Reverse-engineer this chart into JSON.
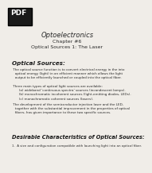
{
  "bg_color": "#f0ede8",
  "pdf_badge_color": "#1a1a1a",
  "pdf_badge_text": "PDF",
  "pdf_badge_text_color": "#ffffff",
  "title": "Optoelectronics",
  "subtitle1": "Chapter #6",
  "subtitle2": "Optical Sources 1: The Laser",
  "section1": "Optical Sources:",
  "bullet1_marker": "•",
  "bullet1": " The optical source function is to convert electrical energy in the into\n   optical energy (light) in an efficient manner which allows the light\n   output to be efficiently launched or coupled into the optical fiber.",
  "bullet2_marker": "–",
  "bullet2": " Three main types of optical light sources are available:\n       (a) wideband ‘continuous spectra’ sources (incandescent lamps).\n       (b) monochromatic incoherent sources (light-emitting diodes, LEDs).\n       (c) monochromatic coherent sources (lasers).",
  "bullet3_marker": "•",
  "bullet3": " The development of the semiconductor injection laser and the LED,\n   together with the substantial improvement in the properties of optical\n   fibers, has given importance to these two specific sources.",
  "section2": "Desirable Characteristics of Optical Sources:",
  "item1": "1.  A size and configuration compatible with launching light into an optical fiber.",
  "title_fontsize": 6.0,
  "subtitle_fontsize": 4.5,
  "section1_fontsize": 5.2,
  "section2_fontsize": 4.8,
  "body_fontsize": 3.0,
  "item_fontsize": 2.9,
  "badge_fontsize": 6.5
}
